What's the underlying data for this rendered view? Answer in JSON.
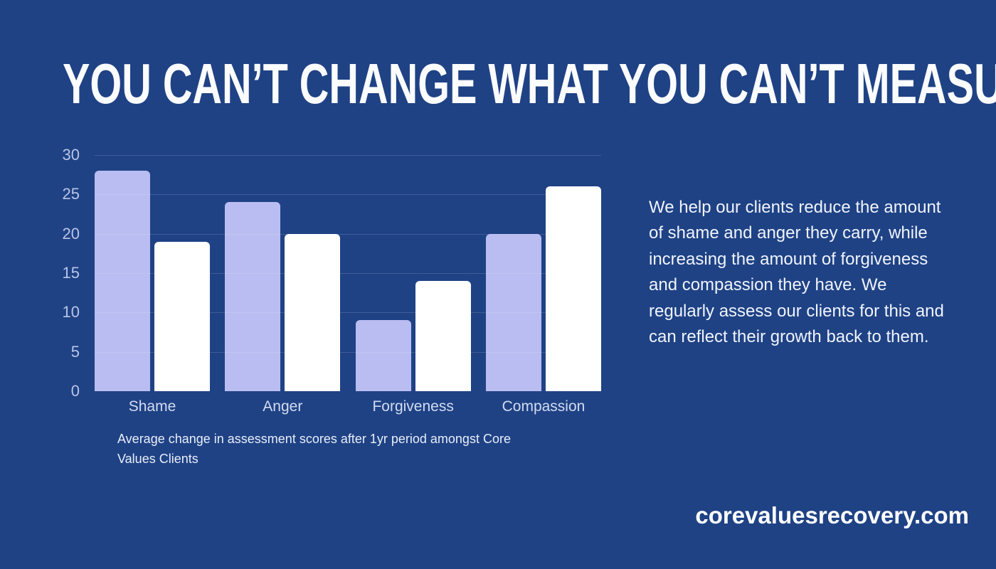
{
  "title": "YOU CAN’T CHANGE WHAT YOU CAN’T MEASURE",
  "side_text": "We help our clients reduce the amount of shame and anger they carry, while increasing the amount of forgiveness and compassion they have. We regularly assess our clients for this and can reflect their growth back to them.",
  "website": "corevaluesrecovery.com",
  "colors": {
    "background": "#1f4285",
    "bar_lavender": "#b9bdf1",
    "bar_white": "#ffffff",
    "axis_label": "#b9c5e6",
    "gridline": "rgba(255,255,255,0.14)"
  },
  "chart_data": {
    "type": "bar",
    "categories": [
      "Shame",
      "Anger",
      "Forgiveness",
      "Compassion"
    ],
    "series": [
      {
        "name": "lavender",
        "color": "#b9bdf1",
        "values": [
          28,
          24,
          9,
          20
        ]
      },
      {
        "name": "white",
        "color": "#ffffff",
        "values": [
          19,
          20,
          14,
          26
        ]
      }
    ],
    "yticks": [
      0,
      5,
      10,
      15,
      20,
      25,
      30
    ],
    "ylim": [
      0,
      30
    ],
    "grid": true,
    "legend": false,
    "caption": "Average change in assessment scores after 1yr period amongst Core Values Clients"
  }
}
